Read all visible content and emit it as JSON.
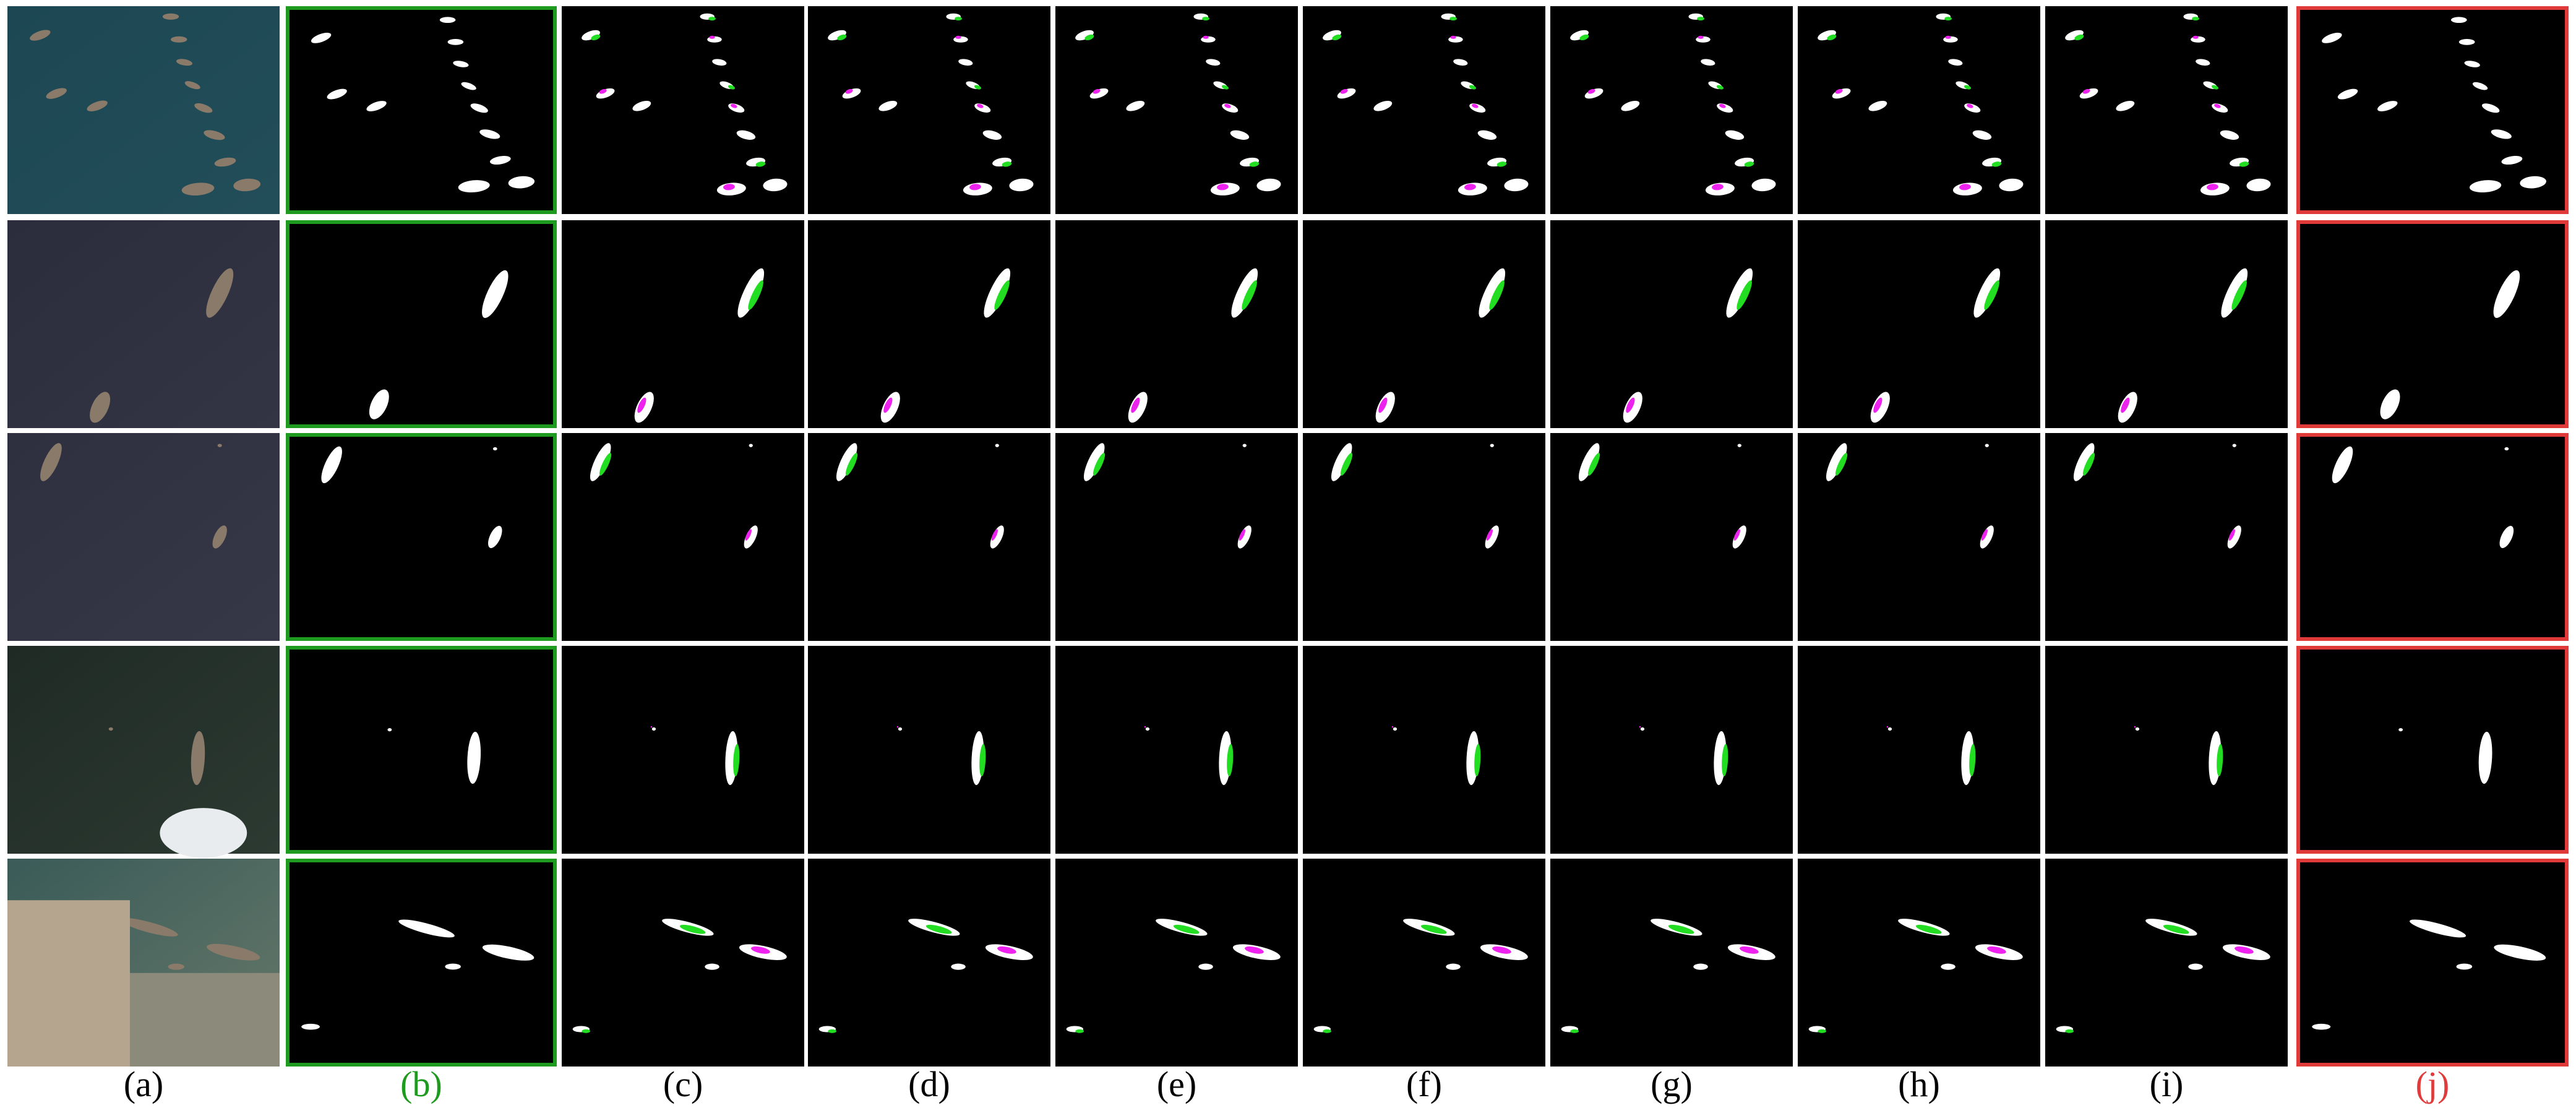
{
  "figure": {
    "columns": [
      {
        "label": "(a)",
        "kind": "input"
      },
      {
        "label": "(b)",
        "kind": "mask",
        "frame": "#1e9a1e",
        "label_color": "#1e9a1e"
      },
      {
        "label": "(c)",
        "kind": "mask"
      },
      {
        "label": "(d)",
        "kind": "mask"
      },
      {
        "label": "(e)",
        "kind": "mask"
      },
      {
        "label": "(f)",
        "kind": "mask"
      },
      {
        "label": "(g)",
        "kind": "mask"
      },
      {
        "label": "(h)",
        "kind": "mask"
      },
      {
        "label": "(i)",
        "kind": "mask"
      },
      {
        "label": "(j)",
        "kind": "mask",
        "frame": "#e03a3a",
        "label_color": "#e03a3a"
      }
    ],
    "rows": [
      {
        "scene": "harbor with moored boats along a quay",
        "tone": [
          "#1c4753",
          "#224e5a"
        ]
      },
      {
        "scene": "open sea with two cargo ships",
        "tone": [
          "#2b2d3c",
          "#333545"
        ]
      },
      {
        "scene": "open sea with small vessels",
        "tone": [
          "#2e3040",
          "#363848"
        ]
      },
      {
        "scene": "dark water with a ship and clouds",
        "tone": [
          "#1f2a24",
          "#2c3a32"
        ]
      },
      {
        "scene": "port with docked ships and buildings",
        "tone": [
          "#3a5b58",
          "#66786a"
        ]
      }
    ],
    "legend_colors": {
      "mask": "#ffffff",
      "false_negative": "#22dd22",
      "false_positive": "#ee22ee",
      "background": "#000000"
    }
  }
}
